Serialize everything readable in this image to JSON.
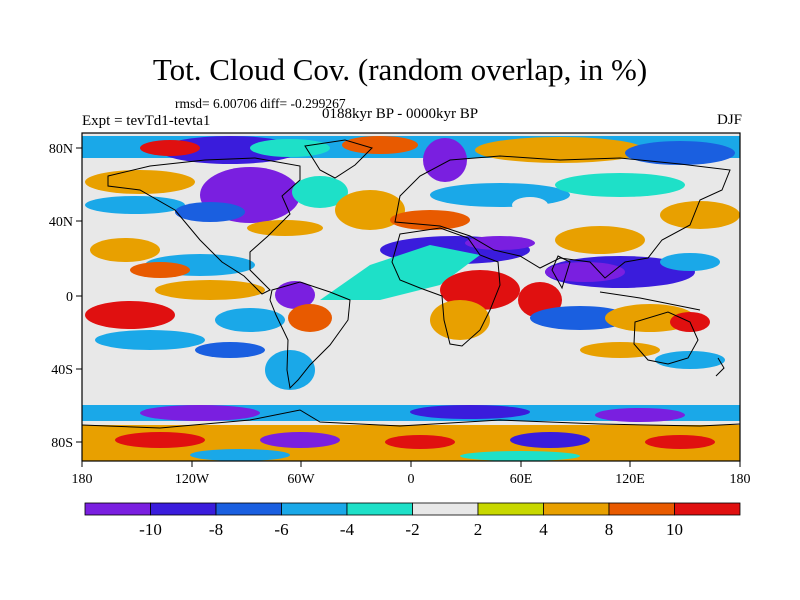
{
  "plot": {
    "title": "Tot. Cloud Cov. (random overlap, in %)",
    "stats": "rmsd= 6.00706 diff= -0.299267",
    "experiment": "Expt = tevTd1-tevta1",
    "period": "0188kyr BP - 0000kyr BP",
    "season": "DJF"
  },
  "axes": {
    "lat_labels": [
      "80N",
      "40N",
      "0",
      "40S",
      "80S"
    ],
    "lon_labels": [
      "180",
      "120W",
      "60W",
      "0",
      "60E",
      "120E",
      "180"
    ]
  },
  "colorbar": {
    "labels": [
      "-10",
      "-8",
      "-6",
      "-4",
      "-2",
      "2",
      "4",
      "8",
      "10"
    ],
    "colors": [
      "#7a1fe0",
      "#3a1cdc",
      "#1a5fe0",
      "#1aa8e8",
      "#1ee0c8",
      "#e8e8e8",
      "#c8d800",
      "#e8a000",
      "#e85a00",
      "#e01010"
    ]
  },
  "colors": {
    "background": "#e8e8e8",
    "coastline": "#000000"
  }
}
